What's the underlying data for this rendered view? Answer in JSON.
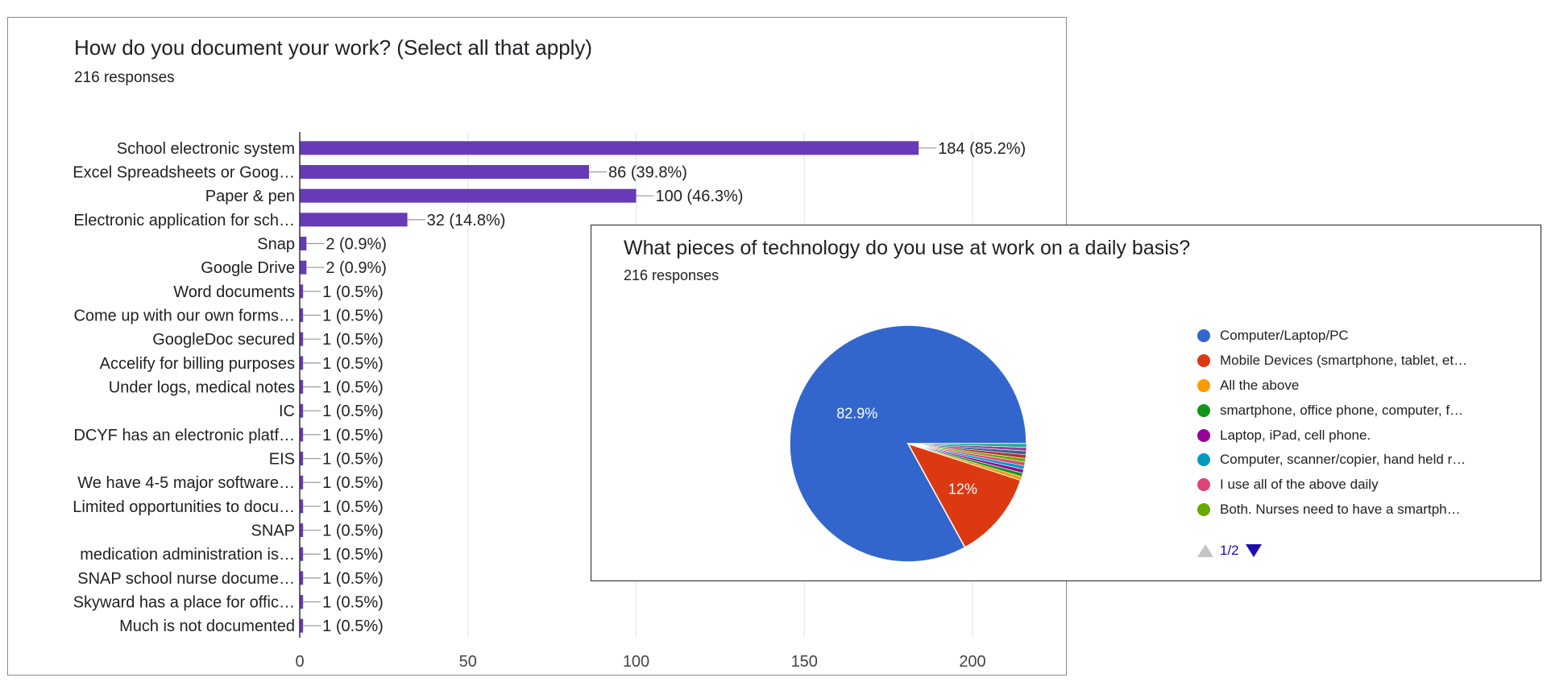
{
  "charts": {
    "documentation": {
      "title": "How do you document your work? (Select all that apply)",
      "responses": "216 responses"
    },
    "technology": {
      "title": "What pieces of technology do you use at work on a daily basis?",
      "responses": "216 responses",
      "page_indicator": "1/2"
    }
  },
  "chart_data": [
    {
      "type": "bar",
      "orientation": "horizontal",
      "title": "How do you document your work? (Select all that apply)",
      "subtitle": "216 responses",
      "categories": [
        "School electronic system",
        "Excel Spreadsheets or Goog…",
        "Paper & pen",
        "Electronic application for sch…",
        "Snap",
        "Google Drive",
        "Word documents",
        "Come up with our own forms…",
        "GoogleDoc secured",
        "Accelify for billing purposes",
        "Under logs, medical notes",
        "IC",
        "DCYF has an electronic platf…",
        "EIS",
        "We have 4-5 major software…",
        "Limited opportunities to docu…",
        "SNAP",
        "medication administration is…",
        "SNAP school nurse docume…",
        "Skyward has a place for offic…",
        "Much is not documented"
      ],
      "values": [
        184,
        86,
        100,
        32,
        2,
        2,
        1,
        1,
        1,
        1,
        1,
        1,
        1,
        1,
        1,
        1,
        1,
        1,
        1,
        1,
        1
      ],
      "data_labels": [
        "184 (85.2%)",
        "86 (39.8%)",
        "100 (46.3%)",
        "32 (14.8%)",
        "2 (0.9%)",
        "2 (0.9%)",
        "1 (0.5%)",
        "1 (0.5%)",
        "1 (0.5%)",
        "1 (0.5%)",
        "1 (0.5%)",
        "1 (0.5%)",
        "1 (0.5%)",
        "1 (0.5%)",
        "1 (0.5%)",
        "1 (0.5%)",
        "1 (0.5%)",
        "1 (0.5%)",
        "1 (0.5%)",
        "1 (0.5%)",
        "1 (0.5%)"
      ],
      "xlim": [
        0,
        200
      ],
      "xticks": [
        0,
        50,
        100,
        150,
        200
      ],
      "grid": true,
      "bar_color": "#673ab7"
    },
    {
      "type": "pie",
      "title": "What pieces of technology do you use at work on a daily basis?",
      "subtitle": "216 responses",
      "slices": [
        {
          "label": "Computer/Laptop/PC",
          "value": 82.9,
          "color": "#3366cc",
          "data_label": "82.9%"
        },
        {
          "label": "Mobile Devices (smartphone, tablet, et…",
          "value": 12,
          "color": "#dc3912",
          "data_label": "12%"
        },
        {
          "label": "All the above",
          "value": 0.5,
          "color": "#ff9900"
        },
        {
          "label": "smartphone, office phone, computer, f…",
          "value": 0.5,
          "color": "#109618"
        },
        {
          "label": "Laptop, iPad, cell phone.",
          "value": 0.5,
          "color": "#990099"
        },
        {
          "label": "Computer, scanner/copier, hand held r…",
          "value": 0.5,
          "color": "#0099c6"
        },
        {
          "label": "I use all of the above daily",
          "value": 0.5,
          "color": "#dd4477"
        },
        {
          "label": "Both. Nurses need to have a smartph…",
          "value": 0.5,
          "color": "#66aa00"
        },
        {
          "value": 0.5,
          "color": "#b82e2e"
        },
        {
          "value": 0.5,
          "color": "#316395"
        },
        {
          "value": 0.5,
          "color": "#994499"
        },
        {
          "value": 0.5,
          "color": "#22aa99"
        }
      ],
      "legend_position": "right"
    }
  ]
}
